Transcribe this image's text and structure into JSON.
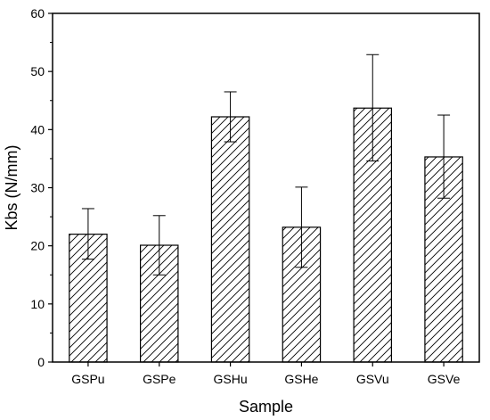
{
  "chart_data": {
    "type": "bar",
    "title": "",
    "xlabel": "Sample",
    "ylabel": "Kbs (N/mm)",
    "categories": [
      "GSPu",
      "GSPe",
      "GSHu",
      "GSHe",
      "GSVu",
      "GSVe"
    ],
    "values": [
      22.0,
      20.1,
      42.2,
      23.2,
      43.7,
      35.3
    ],
    "errors": [
      [
        17.7,
        26.4
      ],
      [
        15.0,
        25.2
      ],
      [
        37.9,
        46.5
      ],
      [
        16.3,
        30.1
      ],
      [
        34.6,
        52.9
      ],
      [
        28.2,
        42.5
      ]
    ],
    "ylim": [
      0,
      60
    ],
    "yticks": [
      "0",
      "10",
      "20",
      "30",
      "40",
      "50",
      "60"
    ],
    "grid": false,
    "bar_fill": "hatched",
    "colors": {
      "bar_edge": "#000000",
      "hatch": "#000000",
      "background": "#ffffff"
    }
  }
}
